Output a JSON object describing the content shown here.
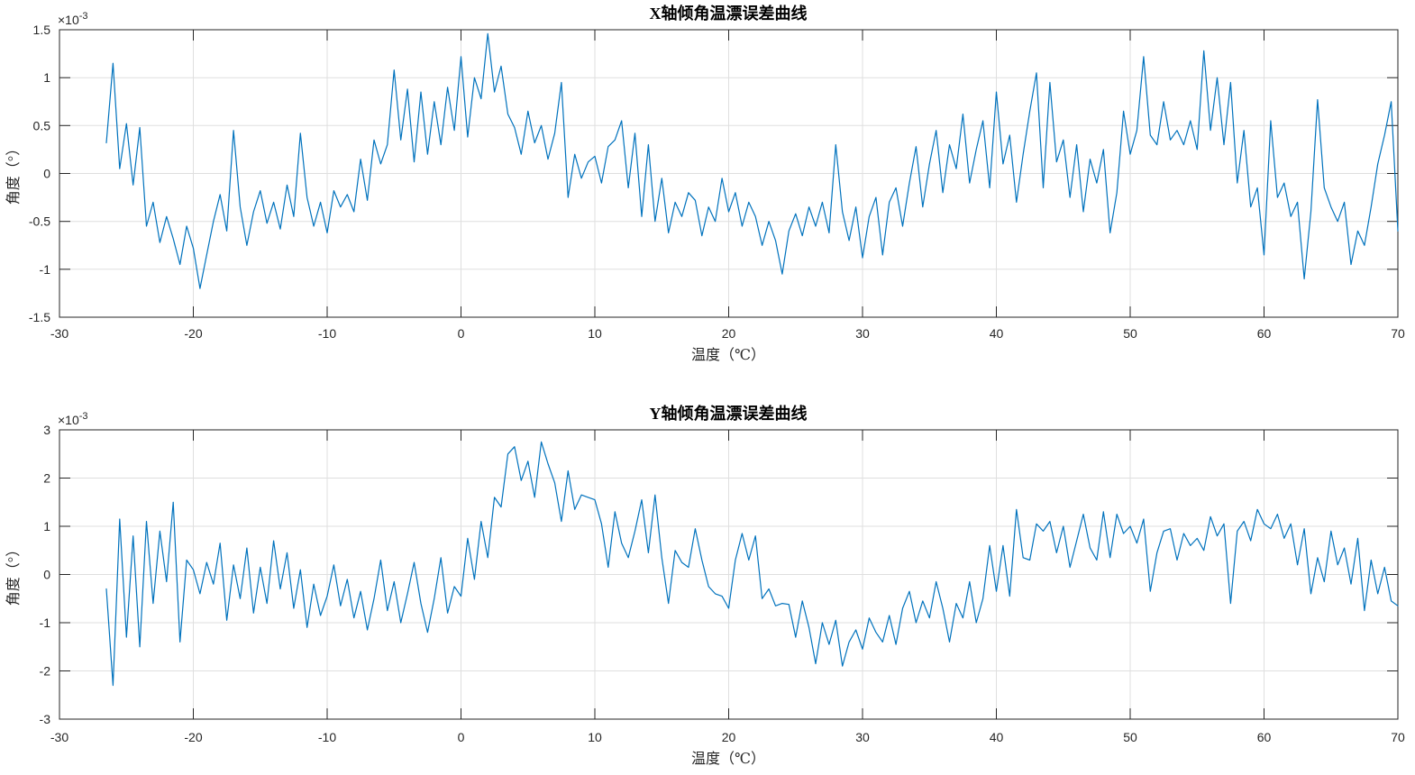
{
  "figure": {
    "background": "#ffffff",
    "axis_color": "#262626",
    "grid_color": "#dfdfdf",
    "line_color": "#0072BD"
  },
  "chart_data": [
    {
      "type": "line",
      "title": "X轴倾角温漂误差曲线",
      "xlabel": "温度（℃）",
      "ylabel": "角度（°）",
      "exp_base": "×10",
      "exp_power": "-3",
      "grid": true,
      "legend": null,
      "xlim": [
        -30,
        70
      ],
      "ylim": [
        -1.5,
        1.5
      ],
      "x_ticks": [
        -30,
        -20,
        -10,
        0,
        10,
        20,
        30,
        40,
        50,
        60,
        70
      ],
      "y_ticks": [
        -1.5,
        -1,
        -0.5,
        0,
        0.5,
        1,
        1.5
      ],
      "y_values_unit": "1e-3 deg",
      "line_color": "#0072BD",
      "series": {
        "name": "X轴倾角温漂误差",
        "x_start": -26.5,
        "x_step": 0.5,
        "values_e3": [
          0.32,
          1.15,
          0.05,
          0.52,
          -0.12,
          0.48,
          -0.55,
          -0.3,
          -0.72,
          -0.45,
          -0.68,
          -0.95,
          -0.55,
          -0.78,
          -1.2,
          -0.85,
          -0.5,
          -0.22,
          -0.6,
          0.45,
          -0.35,
          -0.75,
          -0.4,
          -0.18,
          -0.52,
          -0.3,
          -0.58,
          -0.12,
          -0.45,
          0.42,
          -0.25,
          -0.55,
          -0.3,
          -0.62,
          -0.18,
          -0.35,
          -0.22,
          -0.4,
          0.15,
          -0.28,
          0.35,
          0.1,
          0.3,
          1.08,
          0.35,
          0.88,
          0.12,
          0.85,
          0.2,
          0.75,
          0.3,
          0.9,
          0.45,
          1.22,
          0.38,
          1.0,
          0.78,
          1.46,
          0.85,
          1.12,
          0.62,
          0.48,
          0.2,
          0.65,
          0.32,
          0.5,
          0.15,
          0.42,
          0.95,
          -0.25,
          0.2,
          -0.05,
          0.12,
          0.18,
          -0.1,
          0.28,
          0.35,
          0.55,
          -0.15,
          0.42,
          -0.45,
          0.3,
          -0.5,
          -0.05,
          -0.62,
          -0.3,
          -0.45,
          -0.2,
          -0.28,
          -0.65,
          -0.35,
          -0.5,
          -0.05,
          -0.4,
          -0.2,
          -0.55,
          -0.3,
          -0.45,
          -0.75,
          -0.5,
          -0.7,
          -1.05,
          -0.6,
          -0.42,
          -0.65,
          -0.35,
          -0.55,
          -0.3,
          -0.62,
          0.3,
          -0.4,
          -0.7,
          -0.35,
          -0.88,
          -0.45,
          -0.25,
          -0.85,
          -0.3,
          -0.15,
          -0.55,
          -0.1,
          0.28,
          -0.35,
          0.1,
          0.45,
          -0.2,
          0.3,
          0.05,
          0.62,
          -0.1,
          0.25,
          0.55,
          -0.15,
          0.85,
          0.1,
          0.4,
          -0.3,
          0.2,
          0.65,
          1.05,
          -0.15,
          0.95,
          0.12,
          0.35,
          -0.25,
          0.3,
          -0.4,
          0.15,
          -0.1,
          0.25,
          -0.62,
          -0.2,
          0.65,
          0.2,
          0.45,
          1.22,
          0.4,
          0.3,
          0.75,
          0.35,
          0.45,
          0.3,
          0.55,
          0.25,
          1.28,
          0.45,
          1.0,
          0.3,
          0.95,
          -0.1,
          0.45,
          -0.35,
          -0.15,
          -0.85,
          0.55,
          -0.25,
          -0.1,
          -0.45,
          -0.3,
          -1.1,
          -0.4,
          0.77,
          -0.15,
          -0.35,
          -0.5,
          -0.3,
          -0.95,
          -0.6,
          -0.75,
          -0.35,
          0.1,
          0.4,
          0.75,
          -0.6
        ]
      }
    },
    {
      "type": "line",
      "title": "Y轴倾角温漂误差曲线",
      "xlabel": "温度（℃）",
      "ylabel": "角度（°）",
      "exp_base": "×10",
      "exp_power": "-3",
      "grid": true,
      "legend": null,
      "xlim": [
        -30,
        70
      ],
      "ylim": [
        -3,
        3
      ],
      "x_ticks": [
        -30,
        -20,
        -10,
        0,
        10,
        20,
        30,
        40,
        50,
        60,
        70
      ],
      "y_ticks": [
        -3,
        -2,
        -1,
        0,
        1,
        2,
        3
      ],
      "y_values_unit": "1e-3 deg",
      "line_color": "#0072BD",
      "series": {
        "name": "Y轴倾角温漂误差",
        "x_start": -26.5,
        "x_step": 0.5,
        "values_e3": [
          -0.3,
          -2.3,
          1.15,
          -1.3,
          0.8,
          -1.5,
          1.1,
          -0.6,
          0.9,
          -0.15,
          1.5,
          -1.4,
          0.3,
          0.1,
          -0.4,
          0.25,
          -0.2,
          0.65,
          -0.95,
          0.2,
          -0.5,
          0.55,
          -0.8,
          0.15,
          -0.6,
          0.7,
          -0.3,
          0.45,
          -0.7,
          0.1,
          -1.1,
          -0.2,
          -0.85,
          -0.45,
          0.2,
          -0.65,
          -0.1,
          -0.9,
          -0.35,
          -1.15,
          -0.5,
          0.3,
          -0.75,
          -0.15,
          -1.0,
          -0.4,
          0.25,
          -0.6,
          -1.2,
          -0.5,
          0.35,
          -0.8,
          -0.25,
          -0.45,
          0.75,
          -0.1,
          1.1,
          0.35,
          1.6,
          1.4,
          2.5,
          2.65,
          1.95,
          2.35,
          1.6,
          2.75,
          2.3,
          1.9,
          1.1,
          2.15,
          1.35,
          1.65,
          1.6,
          1.55,
          1.05,
          0.15,
          1.3,
          0.65,
          0.35,
          0.9,
          1.55,
          0.45,
          1.65,
          0.35,
          -0.6,
          0.5,
          0.25,
          0.15,
          0.95,
          0.3,
          -0.25,
          -0.4,
          -0.45,
          -0.7,
          0.3,
          0.85,
          0.3,
          0.8,
          -0.5,
          -0.3,
          -0.65,
          -0.6,
          -0.62,
          -1.3,
          -0.55,
          -1.1,
          -1.85,
          -1.0,
          -1.45,
          -0.95,
          -1.9,
          -1.4,
          -1.15,
          -1.55,
          -0.9,
          -1.2,
          -1.4,
          -0.85,
          -1.45,
          -0.7,
          -0.35,
          -1.0,
          -0.55,
          -0.9,
          -0.15,
          -0.7,
          -1.4,
          -0.6,
          -0.9,
          -0.15,
          -1.0,
          -0.5,
          0.6,
          -0.35,
          0.6,
          -0.45,
          1.35,
          0.35,
          0.3,
          1.05,
          0.9,
          1.1,
          0.45,
          1.0,
          0.15,
          0.7,
          1.25,
          0.55,
          0.3,
          1.3,
          0.35,
          1.25,
          0.85,
          1.0,
          0.65,
          1.15,
          -0.35,
          0.45,
          0.9,
          0.95,
          0.3,
          0.85,
          0.6,
          0.75,
          0.5,
          1.2,
          0.8,
          1.05,
          -0.6,
          0.9,
          1.1,
          0.7,
          1.35,
          1.05,
          0.95,
          1.25,
          0.75,
          1.05,
          0.2,
          0.95,
          -0.4,
          0.35,
          -0.15,
          0.9,
          0.2,
          0.55,
          -0.2,
          0.75,
          -0.75,
          0.3,
          -0.4,
          0.15,
          -0.55,
          -0.65
        ]
      }
    }
  ]
}
